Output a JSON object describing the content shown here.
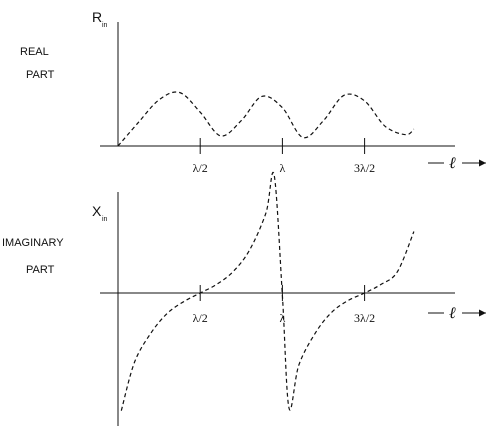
{
  "chart_data": [
    {
      "type": "line",
      "side_label": [
        "REAL",
        "PART"
      ],
      "ylabel_main": "R",
      "ylabel_sub": "in",
      "xlabel": "ℓ",
      "x_ticks": [
        {
          "x": 0.5,
          "label": "λ/2"
        },
        {
          "x": 1.0,
          "label": "λ"
        },
        {
          "x": 1.5,
          "label": "3λ/2"
        }
      ],
      "xlim": [
        0,
        2.05
      ],
      "ylim": [
        0,
        2.2
      ],
      "series": [
        {
          "values": [
            [
              0.0,
              0.0
            ],
            [
              0.125,
              0.42
            ],
            [
              0.25,
              0.82
            ],
            [
              0.375,
              0.95
            ],
            [
              0.5,
              0.6
            ],
            [
              0.625,
              0.18
            ],
            [
              0.75,
              0.45
            ],
            [
              0.875,
              0.88
            ],
            [
              1.0,
              0.68
            ],
            [
              1.125,
              0.15
            ],
            [
              1.25,
              0.45
            ],
            [
              1.375,
              0.9
            ],
            [
              1.5,
              0.8
            ],
            [
              1.625,
              0.35
            ],
            [
              1.75,
              0.2
            ],
            [
              1.8,
              0.3
            ]
          ]
        }
      ]
    },
    {
      "type": "line",
      "side_label": [
        "IMAGINARY",
        "PART"
      ],
      "ylabel_main": "X",
      "ylabel_sub": "in",
      "xlabel": "ℓ",
      "x_ticks": [
        {
          "x": 0.5,
          "label": "λ/2"
        },
        {
          "x": 1.0,
          "label": "λ"
        },
        {
          "x": 1.5,
          "label": "3λ/2"
        }
      ],
      "xlim": [
        0,
        2.05
      ],
      "ylim": [
        -2.3,
        2.3
      ],
      "series": [
        {
          "values": [
            [
              0.02,
              -2.2
            ],
            [
              0.1,
              -1.3
            ],
            [
              0.2,
              -0.75
            ],
            [
              0.3,
              -0.38
            ],
            [
              0.4,
              -0.16
            ],
            [
              0.5,
              0.0
            ],
            [
              0.6,
              0.16
            ],
            [
              0.7,
              0.4
            ],
            [
              0.8,
              0.8
            ],
            [
              0.9,
              1.5
            ],
            [
              0.95,
              2.2
            ],
            [
              1.0,
              -0.05
            ],
            [
              1.04,
              -2.15
            ],
            [
              1.1,
              -1.35
            ],
            [
              1.2,
              -0.75
            ],
            [
              1.3,
              -0.36
            ],
            [
              1.4,
              -0.14
            ],
            [
              1.5,
              0.0
            ],
            [
              1.6,
              0.16
            ],
            [
              1.7,
              0.4
            ],
            [
              1.8,
              1.15
            ]
          ]
        }
      ]
    }
  ]
}
